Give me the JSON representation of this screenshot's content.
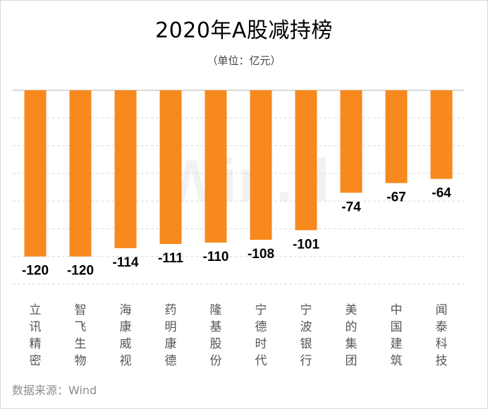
{
  "title": "2020年A股减持榜",
  "subtitle": "（单位：亿元）",
  "watermark": "Win.d",
  "source": "数据来源：Wind",
  "colors": {
    "bar": "#F7891F",
    "grid": "#d9d9d9",
    "axis": "#cfcfcf"
  },
  "chart_data": {
    "type": "bar",
    "title": "2020年A股减持榜",
    "subtitle": "（单位：亿元）",
    "categories": [
      "立讯精密",
      "智飞生物",
      "海康威视",
      "药明康德",
      "隆基股份",
      "宁德时代",
      "宁波银行",
      "美的集团",
      "中国建筑",
      "闻泰科技"
    ],
    "values": [
      -120,
      -120,
      -114,
      -111,
      -110,
      -108,
      -101,
      -74,
      -67,
      -64
    ],
    "ylim": [
      -140,
      0
    ],
    "grid": true,
    "xlabel": "",
    "ylabel": ""
  }
}
